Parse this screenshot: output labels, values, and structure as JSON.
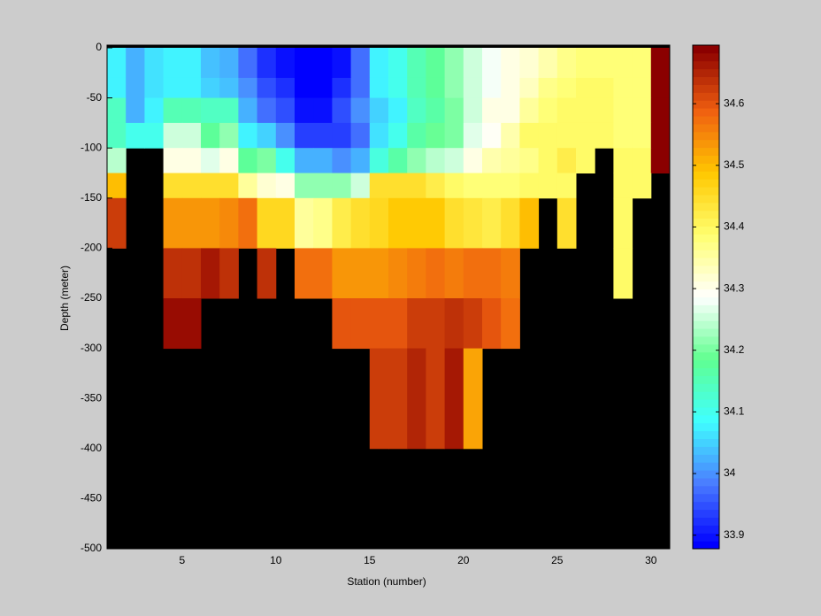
{
  "chart_data": {
    "type": "pcolor",
    "xlabel": "Station (number)",
    "ylabel": "Depth (meter)",
    "x": [
      1,
      2,
      3,
      4,
      5,
      6,
      7,
      8,
      9,
      10,
      11,
      12,
      13,
      14,
      15,
      16,
      17,
      18,
      19,
      20,
      21,
      22,
      23,
      24,
      25,
      26,
      27,
      28,
      29,
      30,
      31
    ],
    "y_edges": [
      0,
      -30,
      -50,
      -75,
      -100,
      -125,
      -150,
      -200,
      -250,
      -300,
      -400
    ],
    "values": [
      [
        34.07,
        34.03,
        34.06,
        34.08,
        34.08,
        34.04,
        34.03,
        33.98,
        33.92,
        33.9,
        33.88,
        33.88,
        33.9,
        33.97,
        34.08,
        34.1,
        34.15,
        34.18,
        34.22,
        34.25,
        34.28,
        34.3,
        34.32,
        34.35,
        34.37,
        34.38,
        34.38,
        34.38,
        34.38,
        34.69
      ],
      [
        34.08,
        34.02,
        34.06,
        34.08,
        34.08,
        34.05,
        34.04,
        34.0,
        33.95,
        33.92,
        33.88,
        33.88,
        33.92,
        33.97,
        34.08,
        34.1,
        34.15,
        34.18,
        34.22,
        34.25,
        34.28,
        34.3,
        34.33,
        34.37,
        34.38,
        34.39,
        34.39,
        34.38,
        34.38,
        34.69
      ],
      [
        34.14,
        34.03,
        34.08,
        34.15,
        34.15,
        34.14,
        34.14,
        34.03,
        33.98,
        33.95,
        33.9,
        33.9,
        33.95,
        34.0,
        34.05,
        34.08,
        34.14,
        34.17,
        34.2,
        34.26,
        34.3,
        34.3,
        34.36,
        34.38,
        34.39,
        34.4,
        34.4,
        34.38,
        34.38,
        34.69
      ],
      [
        34.14,
        34.1,
        34.1,
        34.25,
        34.25,
        34.18,
        34.22,
        34.08,
        34.05,
        34.0,
        33.93,
        33.93,
        33.93,
        33.98,
        34.06,
        34.1,
        34.17,
        34.19,
        34.2,
        34.27,
        34.29,
        34.35,
        34.4,
        34.4,
        34.4,
        34.4,
        34.4,
        34.38,
        34.38,
        34.69
      ],
      [
        34.24,
        null,
        null,
        34.3,
        34.3,
        34.27,
        34.3,
        34.18,
        34.2,
        34.1,
        34.03,
        34.03,
        34.0,
        34.03,
        34.12,
        34.16,
        34.22,
        34.24,
        34.26,
        34.3,
        34.35,
        34.36,
        34.37,
        34.4,
        34.42,
        34.4,
        null,
        34.39,
        34.39,
        34.69
      ],
      [
        34.5,
        null,
        null,
        34.45,
        34.45,
        34.45,
        34.45,
        34.36,
        34.32,
        34.3,
        34.22,
        34.22,
        34.22,
        34.26,
        34.44,
        34.45,
        34.45,
        34.42,
        34.4,
        34.38,
        34.38,
        34.38,
        34.4,
        34.4,
        34.4,
        null,
        null,
        34.4,
        34.4,
        null
      ],
      [
        34.63,
        null,
        null,
        34.53,
        34.53,
        34.53,
        34.55,
        34.57,
        34.46,
        34.46,
        34.36,
        34.37,
        34.42,
        34.44,
        34.46,
        34.48,
        34.48,
        34.48,
        34.44,
        34.43,
        34.42,
        34.44,
        34.5,
        null,
        34.44,
        null,
        null,
        34.4,
        null,
        null
      ],
      [
        null,
        null,
        null,
        34.64,
        34.64,
        34.66,
        34.64,
        null,
        34.64,
        null,
        34.58,
        34.58,
        34.54,
        34.54,
        34.54,
        34.55,
        34.56,
        34.57,
        34.56,
        34.58,
        34.57,
        34.56,
        null,
        null,
        null,
        null,
        null,
        34.4,
        null,
        null
      ],
      [
        null,
        null,
        null,
        34.67,
        34.67,
        null,
        null,
        null,
        null,
        null,
        null,
        null,
        34.6,
        34.6,
        34.6,
        34.6,
        34.62,
        34.62,
        34.64,
        34.62,
        34.6,
        34.58,
        null,
        null,
        null,
        null,
        null,
        null,
        null,
        null
      ],
      [
        null,
        null,
        null,
        null,
        null,
        null,
        null,
        null,
        null,
        null,
        null,
        null,
        null,
        null,
        34.63,
        34.62,
        34.65,
        34.63,
        34.66,
        34.52,
        null,
        null,
        null,
        null,
        null,
        null,
        null,
        null,
        null,
        null
      ]
    ],
    "xlim": [
      1,
      31
    ],
    "xticks": [
      5,
      10,
      15,
      20,
      25,
      30
    ],
    "ylim": [
      -500,
      0
    ],
    "yticks": [
      0,
      -50,
      -100,
      -150,
      -200,
      -250,
      -300,
      -350,
      -400,
      -450,
      -500
    ],
    "clim": [
      33.878,
      34.695
    ],
    "cticks": [
      33.9,
      34,
      34.1,
      34.2,
      34.3,
      34.4,
      34.5,
      34.6
    ],
    "colormap": [
      "#0000ff",
      "#4a7dff",
      "#40ffff",
      "#60ff90",
      "#ffffff",
      "#ffff70",
      "#ffc800",
      "#f06010",
      "#8b0000"
    ],
    "background": "#000000"
  }
}
